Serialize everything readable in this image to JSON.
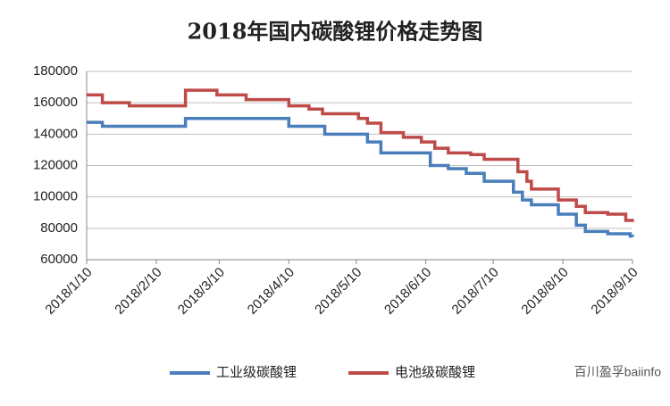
{
  "chart_data": {
    "type": "line",
    "title": "2018年国内碳酸锂价格走势图",
    "step": "post",
    "grid": true,
    "legend": "bottom",
    "watermark": "百川盈孚baiinfo",
    "ylim": [
      60000,
      180000
    ],
    "yticks": [
      60000,
      80000,
      100000,
      120000,
      140000,
      160000,
      180000
    ],
    "xlim": [
      "2018-01-10",
      "2018-09-10"
    ],
    "xticks": [
      {
        "value": "2018-01-10",
        "label": "2018/1/10"
      },
      {
        "value": "2018-02-10",
        "label": "2018/2/10"
      },
      {
        "value": "2018-03-10",
        "label": "2018/3/10"
      },
      {
        "value": "2018-04-10",
        "label": "2018/4/10"
      },
      {
        "value": "2018-05-10",
        "label": "2018/5/10"
      },
      {
        "value": "2018-06-10",
        "label": "2018/6/10"
      },
      {
        "value": "2018-07-10",
        "label": "2018/7/10"
      },
      {
        "value": "2018-08-10",
        "label": "2018/8/10"
      },
      {
        "value": "2018-09-10",
        "label": "2018/9/10"
      }
    ],
    "series": [
      {
        "name": "工业级碳酸锂",
        "color": "#4a7ebb",
        "x": [
          "2018-01-10",
          "2018-01-17",
          "2018-02-23",
          "2018-04-10",
          "2018-04-26",
          "2018-05-15",
          "2018-05-21",
          "2018-06-12",
          "2018-06-20",
          "2018-06-28",
          "2018-07-06",
          "2018-07-19",
          "2018-07-23",
          "2018-07-27",
          "2018-08-08",
          "2018-08-16",
          "2018-08-20",
          "2018-08-30",
          "2018-09-09",
          "2018-09-10"
        ],
        "values": [
          147500,
          145000,
          150000,
          145000,
          140000,
          135000,
          128000,
          120000,
          118000,
          115000,
          110000,
          103000,
          98000,
          95000,
          89000,
          82000,
          78000,
          76500,
          75000,
          74500
        ]
      },
      {
        "name": "电池级碳酸锂",
        "color": "#be4b48",
        "x": [
          "2018-01-10",
          "2018-01-17",
          "2018-01-29",
          "2018-02-23",
          "2018-03-09",
          "2018-03-22",
          "2018-04-10",
          "2018-04-19",
          "2018-04-25",
          "2018-05-11",
          "2018-05-15",
          "2018-05-21",
          "2018-05-31",
          "2018-06-08",
          "2018-06-14",
          "2018-06-20",
          "2018-06-30",
          "2018-07-06",
          "2018-07-21",
          "2018-07-25",
          "2018-07-27",
          "2018-08-08",
          "2018-08-16",
          "2018-08-20",
          "2018-08-30",
          "2018-09-07",
          "2018-09-10"
        ],
        "values": [
          165000,
          160000,
          158000,
          168000,
          165000,
          162000,
          158000,
          156000,
          153000,
          150000,
          147000,
          141000,
          138000,
          135000,
          131000,
          128000,
          127000,
          124000,
          116000,
          110000,
          105000,
          98000,
          94000,
          90000,
          89000,
          85000,
          84000
        ]
      }
    ]
  }
}
